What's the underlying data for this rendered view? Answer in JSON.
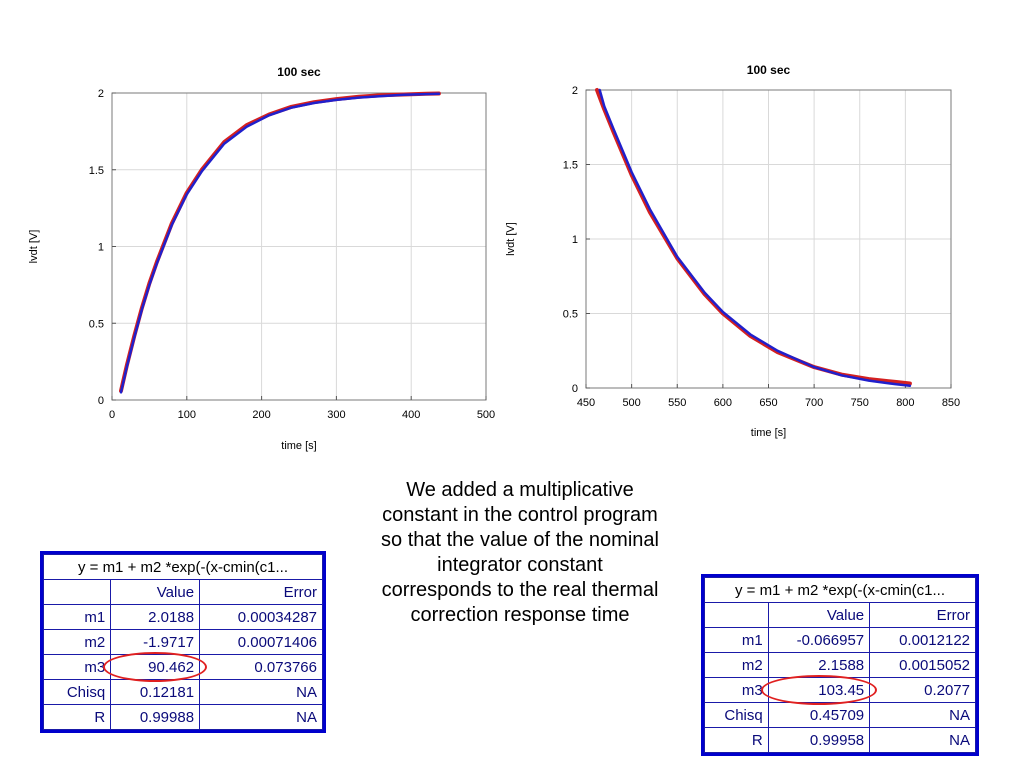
{
  "chart_data": [
    {
      "type": "line",
      "title": "100 sec",
      "xlabel": "time [s]",
      "ylabel": "lvdt [V]",
      "xlim": [
        0,
        500
      ],
      "ylim": [
        0,
        2
      ],
      "xticks": [
        0,
        100,
        200,
        300,
        400,
        500
      ],
      "yticks": [
        0,
        0.5,
        1,
        1.5,
        2
      ],
      "ytick_labels": [
        "0",
        "0.5",
        "1",
        "1.5",
        "2"
      ],
      "grid": true,
      "series": [
        {
          "color": "#d42020",
          "x": [
            12,
            20,
            30,
            40,
            50,
            60,
            80,
            100,
            120,
            150,
            180,
            210,
            240,
            270,
            300,
            330,
            360,
            390,
            420,
            437
          ],
          "y": [
            0.06,
            0.23,
            0.42,
            0.6,
            0.76,
            0.9,
            1.15,
            1.35,
            1.5,
            1.68,
            1.79,
            1.86,
            1.91,
            1.94,
            1.96,
            1.975,
            1.985,
            1.99,
            1.995,
            1.997
          ]
        },
        {
          "color": "#2020cc",
          "x": [
            12,
            20,
            30,
            40,
            50,
            60,
            80,
            100,
            120,
            150,
            180,
            210,
            240,
            270,
            300,
            330,
            360,
            390,
            420,
            437
          ],
          "y": [
            0.05,
            0.22,
            0.41,
            0.59,
            0.75,
            0.89,
            1.14,
            1.34,
            1.49,
            1.67,
            1.78,
            1.855,
            1.905,
            1.935,
            1.955,
            1.97,
            1.98,
            1.988,
            1.993,
            1.995
          ]
        }
      ]
    },
    {
      "type": "line",
      "title": "100 sec",
      "xlabel": "time [s]",
      "ylabel": "lvdt [V]",
      "xlim": [
        450,
        850
      ],
      "ylim": [
        0,
        2
      ],
      "xticks": [
        450,
        500,
        550,
        600,
        650,
        700,
        750,
        800,
        850
      ],
      "yticks": [
        0,
        0.5,
        1,
        1.5,
        2
      ],
      "ytick_labels": [
        "0",
        "0.5",
        "1",
        "1.5",
        "2"
      ],
      "grid": true,
      "series": [
        {
          "color": "#d42020",
          "x": [
            462,
            470,
            480,
            500,
            520,
            550,
            580,
            600,
            630,
            660,
            700,
            730,
            760,
            790,
            805
          ],
          "y": [
            2.0,
            1.87,
            1.72,
            1.43,
            1.18,
            0.87,
            0.63,
            0.5,
            0.35,
            0.24,
            0.14,
            0.09,
            0.06,
            0.04,
            0.03
          ]
        },
        {
          "color": "#2020cc",
          "x": [
            465,
            470,
            480,
            500,
            520,
            550,
            580,
            600,
            630,
            660,
            700,
            730,
            760,
            790,
            805
          ],
          "y": [
            2.0,
            1.89,
            1.74,
            1.45,
            1.2,
            0.88,
            0.64,
            0.51,
            0.36,
            0.25,
            0.14,
            0.085,
            0.05,
            0.025,
            0.015
          ]
        }
      ]
    }
  ],
  "tables": [
    {
      "title": "y = m1 + m2 *exp(-(x-cmin(c1...",
      "col_value": "Value",
      "col_error": "Error",
      "rows": [
        {
          "name": "m1",
          "value": "2.0188",
          "error": "0.00034287"
        },
        {
          "name": "m2",
          "value": "-1.9717",
          "error": "0.00071406"
        },
        {
          "name": "m3",
          "value": "90.462",
          "error": "0.073766"
        },
        {
          "name": "Chisq",
          "value": "0.12181",
          "error": "NA"
        },
        {
          "name": "R",
          "value": "0.99988",
          "error": "NA"
        }
      ]
    },
    {
      "title": "y = m1 + m2 *exp(-(x-cmin(c1...",
      "col_value": "Value",
      "col_error": "Error",
      "rows": [
        {
          "name": "m1",
          "value": "-0.066957",
          "error": "0.0012122"
        },
        {
          "name": "m2",
          "value": "2.1588",
          "error": "0.0015052"
        },
        {
          "name": "m3",
          "value": "103.45",
          "error": "0.2077"
        },
        {
          "name": "Chisq",
          "value": "0.45709",
          "error": "NA"
        },
        {
          "name": "R",
          "value": "0.99958",
          "error": "NA"
        }
      ]
    }
  ],
  "note": "We added a multiplicative constant in the control program so that the value of  the nominal integrator constant corresponds to the real thermal correction response time"
}
